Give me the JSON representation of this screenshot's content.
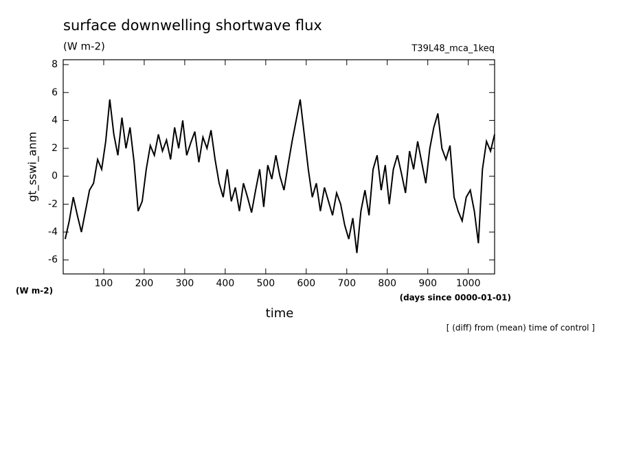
{
  "chart_data": {
    "type": "line",
    "title": "surface downwelling shortwave flux",
    "subtitle": "(W m-2)",
    "run_label": "T39L48_mca_1keq",
    "y_label": "gt_sswi_anm",
    "y_unit": "(W m-2)",
    "x_label": "time",
    "x_unit": "(days since 0000-01-01)",
    "note": "[ (diff) from (mean) time of control ]",
    "color": "#000000",
    "xlim": [
      0,
      1065
    ],
    "ylim": [
      -7,
      8.35
    ],
    "xticks": [
      100,
      200,
      300,
      400,
      500,
      600,
      700,
      800,
      900,
      1000
    ],
    "yticks": [
      -6,
      -4,
      -2,
      0,
      2,
      4,
      6,
      8
    ],
    "x": [
      5,
      15,
      25,
      35,
      45,
      55,
      65,
      75,
      85,
      95,
      105,
      115,
      125,
      135,
      145,
      155,
      165,
      175,
      185,
      195,
      205,
      215,
      225,
      235,
      245,
      255,
      265,
      275,
      285,
      295,
      305,
      315,
      325,
      335,
      345,
      355,
      365,
      375,
      385,
      395,
      405,
      415,
      425,
      435,
      445,
      455,
      465,
      475,
      485,
      495,
      505,
      515,
      525,
      535,
      545,
      555,
      565,
      575,
      585,
      595,
      605,
      615,
      625,
      635,
      645,
      655,
      665,
      675,
      685,
      695,
      705,
      715,
      725,
      735,
      745,
      755,
      765,
      775,
      785,
      795,
      805,
      815,
      825,
      835,
      845,
      855,
      865,
      875,
      885,
      895,
      905,
      915,
      925,
      935,
      945,
      955,
      965,
      975,
      985,
      995,
      1005,
      1015,
      1025,
      1035,
      1045,
      1055,
      1065
    ],
    "values": [
      -4.5,
      -3.2,
      -1.5,
      -2.8,
      -4.0,
      -2.5,
      -1.0,
      -0.5,
      1.2,
      0.5,
      2.5,
      5.5,
      3.0,
      1.5,
      4.2,
      2.0,
      3.5,
      1.0,
      -2.5,
      -1.8,
      0.5,
      2.2,
      1.5,
      3.0,
      1.8,
      2.6,
      1.2,
      3.5,
      2.0,
      4.0,
      1.5,
      2.4,
      3.2,
      1.0,
      2.8,
      2.0,
      3.3,
      1.2,
      -0.5,
      -1.5,
      0.5,
      -1.8,
      -0.8,
      -2.5,
      -0.5,
      -1.5,
      -2.6,
      -1.0,
      0.5,
      -2.2,
      0.8,
      -0.2,
      1.5,
      0.0,
      -1.0,
      0.8,
      2.5,
      4.0,
      5.5,
      3.0,
      0.5,
      -1.5,
      -0.5,
      -2.5,
      -0.8,
      -1.8,
      -2.8,
      -1.2,
      -2.0,
      -3.5,
      -4.5,
      -3.0,
      -5.5,
      -2.5,
      -1.0,
      -2.8,
      0.5,
      1.5,
      -1.0,
      0.8,
      -2.0,
      0.5,
      1.5,
      0.2,
      -1.2,
      1.8,
      0.5,
      2.5,
      1.0,
      -0.5,
      2.0,
      3.5,
      4.5,
      2.0,
      1.2,
      2.2,
      -1.5,
      -2.5,
      -3.2,
      -1.5,
      -1.0,
      -2.5,
      -4.8,
      0.5,
      2.5,
      1.8,
      3.0
    ]
  }
}
